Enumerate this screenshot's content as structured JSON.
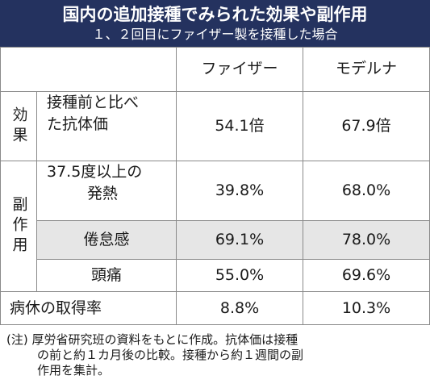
{
  "header": {
    "title": "国内の追加接種でみられた効果や副作用",
    "subtitle": "１、２回目にファイザー製を接種した場合"
  },
  "table": {
    "columns": [
      "ファイザー",
      "モデルナ"
    ],
    "groups": {
      "effect": "効果",
      "side_effects": "副作用"
    },
    "rows": {
      "antibody": {
        "label_line1": "接種前と比べ",
        "label_line2": "た抗体価",
        "pfizer": "54.1倍",
        "moderna": "67.9倍"
      },
      "fever": {
        "label_line1": "37.5度以上の",
        "label_line2": "発熱",
        "pfizer": "39.8%",
        "moderna": "68.0%"
      },
      "fatigue": {
        "label": "倦怠感",
        "pfizer": "69.1%",
        "moderna": "78.0%"
      },
      "headache": {
        "label": "頭痛",
        "pfizer": "55.0%",
        "moderna": "69.6%"
      },
      "hospitalization": {
        "label": "病休の取得率",
        "pfizer": "8.8%",
        "moderna": "10.3%"
      }
    }
  },
  "footnote": {
    "line1": "(注) 厚労省研究班の資料をもとに作成。抗体価は接種",
    "line2": "の前と約１カ月後の比較。接種から約１週間の副",
    "line3": "作用を集計。"
  }
}
